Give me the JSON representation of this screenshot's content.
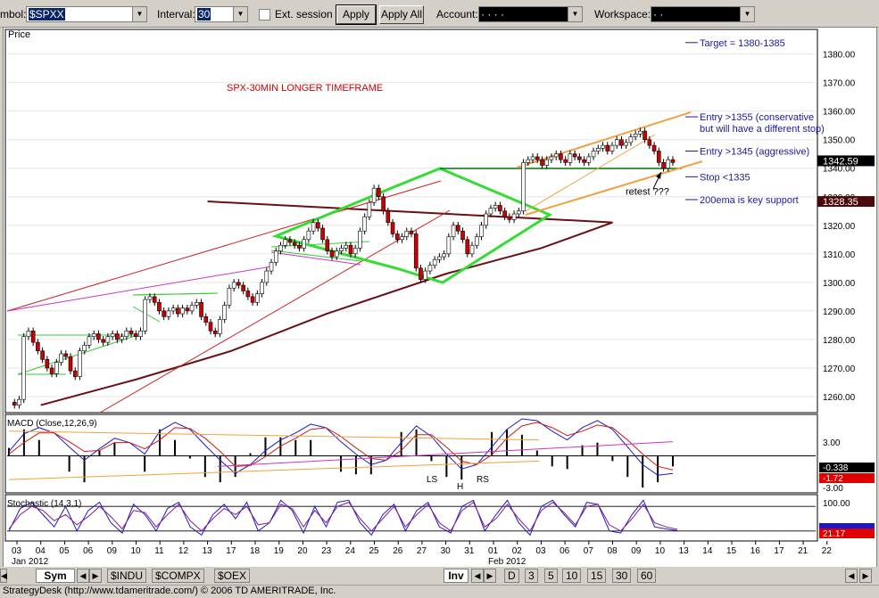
{
  "toolbar": {
    "symbol_label": "mbol:",
    "symbol_value": "$SPXX",
    "interval_label": "Interval:",
    "interval_value": "30",
    "ext_session_label": "Ext. session",
    "apply_label": "Apply",
    "apply_all_label": "Apply All",
    "account_label": "Account:",
    "account_value": "·  ·  ·  ·",
    "workspace_label": "Workspace:",
    "workspace_value": "·  ·"
  },
  "bottom": {
    "sym_tab": "Sym",
    "symbol_tabs": [
      "$INDU",
      "$COMPX",
      "$OEX"
    ],
    "inv_tab": "Inv",
    "interval_tabs": [
      "D",
      "3",
      "5",
      "10",
      "15",
      "30",
      "60"
    ]
  },
  "status_text": "StrategyDesk (http://www.tdameritrade.com/) © 2006 TD AMERITRADE, Inc.",
  "colors": {
    "candle_up": "#ffffff",
    "candle_down": "#cc0000",
    "ema": "#6b0f12",
    "pattern": "#33dd33",
    "channel": "#f0a040",
    "annotation": "#1a1a9c",
    "title": "#cc0000"
  },
  "chart_data": [
    {
      "type": "candlestick",
      "pane": "price",
      "pane_label": "Price",
      "title": "SPX-30MIN LONGER TIMEFRAME",
      "ylim": [
        1255,
        1388
      ],
      "y_ticks": [
        "1260.00",
        "1270.00",
        "1280.00",
        "1290.00",
        "1300.00",
        "1310.00",
        "1320.00",
        "1330.00",
        "1340.00",
        "1350.00",
        "1360.00",
        "1370.00",
        "1380.00"
      ],
      "price_labels": [
        {
          "value": 1342.59,
          "text": "1342.59"
        },
        {
          "value": 1328.35,
          "text": "1328.35"
        }
      ],
      "x_date_ticks": [
        "03",
        "04",
        "05",
        "06",
        "09",
        "10",
        "11",
        "12",
        "13",
        "17",
        "18",
        "19",
        "20",
        "23",
        "24",
        "25",
        "26",
        "27",
        "30",
        "31",
        "01",
        "02",
        "03",
        "06",
        "07",
        "08",
        "09",
        "10",
        "13",
        "14",
        "15",
        "16",
        "17",
        "21",
        "22"
      ],
      "x_month_labels": [
        {
          "at": "03",
          "text": "Jan 2012"
        },
        {
          "at": "01",
          "text": "Feb 2012"
        }
      ],
      "closes": [
        1258,
        1257,
        1259,
        1281,
        1283,
        1279,
        1276,
        1273,
        1270,
        1268,
        1272,
        1275,
        1274,
        1269,
        1267,
        1276,
        1278,
        1281,
        1282,
        1280,
        1279,
        1281,
        1282,
        1280,
        1281,
        1283,
        1282,
        1281,
        1283,
        1294,
        1295,
        1293,
        1290,
        1288,
        1290,
        1291,
        1289,
        1291,
        1290,
        1292,
        1293,
        1288,
        1286,
        1283,
        1282,
        1287,
        1292,
        1298,
        1300,
        1299,
        1297,
        1295,
        1293,
        1296,
        1300,
        1304,
        1307,
        1311,
        1313,
        1315,
        1314,
        1313,
        1312,
        1315,
        1318,
        1321,
        1319,
        1315,
        1311,
        1309,
        1311,
        1312,
        1313,
        1310,
        1312,
        1318,
        1323,
        1328,
        1333,
        1330,
        1325,
        1321,
        1317,
        1315,
        1316,
        1318,
        1317,
        1305,
        1301,
        1304,
        1306,
        1308,
        1309,
        1310,
        1316,
        1320,
        1318,
        1315,
        1310,
        1313,
        1316,
        1320,
        1324,
        1326,
        1327,
        1325,
        1323,
        1322,
        1324,
        1325,
        1342,
        1343,
        1344,
        1343,
        1341,
        1343,
        1344,
        1345,
        1343,
        1342,
        1345,
        1344,
        1343,
        1342,
        1344,
        1346,
        1347,
        1348,
        1346,
        1348,
        1350,
        1348,
        1349,
        1351,
        1352,
        1353,
        1350,
        1348,
        1346,
        1342,
        1340,
        1343,
        1342
      ],
      "ema_200": [
        {
          "x": "04",
          "y": 1257
        },
        {
          "x": "10",
          "y": 1266
        },
        {
          "x": "17",
          "y": 1276
        },
        {
          "x": "23",
          "y": 1289
        },
        {
          "x": "30",
          "y": 1303
        },
        {
          "x": "03",
          "y": 1312
        },
        {
          "x": "08",
          "y": 1321
        },
        {
          "x": "13",
          "y": 1328.35
        }
      ],
      "annotations": [
        {
          "text": "Target = 1380-1385",
          "price": 1384
        },
        {
          "text": "Entry >1355 (conservative",
          "price": 1358
        },
        {
          "text": "but will have a different stop)",
          "price": 1354
        },
        {
          "text": "Entry >1345 (aggressive)",
          "price": 1346
        },
        {
          "text": "Stop  <1335",
          "price": 1337
        },
        {
          "text": "retest ???",
          "price": 1332
        },
        {
          "text": "200ema is key support",
          "price": 1329
        }
      ]
    },
    {
      "type": "line",
      "pane": "macd",
      "pane_label": "MACD (Close,12,26,9)",
      "ylim": [
        -4,
        4.5
      ],
      "y_ticks": [
        "3.00",
        "-3.00"
      ],
      "readouts": [
        "-0.338",
        "-1.72"
      ],
      "pattern_labels": [
        "LS",
        "H",
        "RS"
      ],
      "series": [
        {
          "name": "MACD",
          "color": "#1a1acc",
          "values": [
            0.5,
            2.5,
            3.2,
            2.6,
            1.0,
            -0.5,
            0.8,
            2.0,
            1.5,
            0.2,
            2.8,
            3.8,
            3.0,
            1.2,
            -0.5,
            -2.0,
            -1.0,
            0.6,
            1.8,
            2.6,
            3.6,
            3.2,
            1.6,
            0.2,
            -1.0,
            -0.5,
            1.5,
            3.4,
            2.2,
            0.2,
            -1.5,
            -1.0,
            1.0,
            3.0,
            4.2,
            4.0,
            2.8,
            1.8,
            3.2,
            4.0,
            3.0,
            1.0,
            -1.0,
            -2.2,
            -2.0
          ]
        },
        {
          "name": "Signal",
          "color": "#cc1a1a",
          "values": [
            0.2,
            1.5,
            2.6,
            2.6,
            1.6,
            0.5,
            0.6,
            1.5,
            1.5,
            0.8,
            1.8,
            3.2,
            3.1,
            2.0,
            0.5,
            -1.2,
            -1.1,
            -0.1,
            1.1,
            2.0,
            3.0,
            3.2,
            2.2,
            0.9,
            -0.3,
            -0.5,
            0.6,
            2.4,
            2.4,
            1.0,
            -0.6,
            -1.0,
            0.1,
            2.0,
            3.4,
            3.8,
            3.2,
            2.3,
            2.8,
            3.5,
            3.2,
            1.8,
            0.2,
            -1.2,
            -1.6
          ]
        }
      ]
    },
    {
      "type": "line",
      "pane": "stochastic",
      "pane_label": "Stochastic (14,3,1)",
      "ylim": [
        0,
        100
      ],
      "y_ticks": [
        "100.00"
      ],
      "readouts": [
        "21.17"
      ],
      "series": [
        {
          "name": "%K",
          "color": "#1a1acc",
          "values": [
            20,
            75,
            90,
            60,
            30,
            80,
            20,
            70,
            90,
            40,
            15,
            85,
            60,
            20,
            75,
            90,
            30,
            10,
            60,
            85,
            50,
            90,
            20,
            40,
            95,
            70,
            15,
            80,
            30,
            90,
            95,
            40,
            10,
            60,
            85,
            20,
            70,
            90,
            30,
            15,
            80,
            95,
            20,
            60,
            95,
            40,
            10,
            80,
            95,
            60,
            30,
            90,
            85,
            20,
            15,
            60,
            95,
            30,
            25,
            21
          ]
        },
        {
          "name": "%D",
          "color": "#8a1a8a",
          "values": [
            25,
            60,
            80,
            70,
            45,
            60,
            35,
            55,
            80,
            55,
            25,
            70,
            65,
            30,
            60,
            85,
            45,
            20,
            50,
            75,
            60,
            80,
            35,
            40,
            85,
            75,
            30,
            70,
            40,
            80,
            90,
            50,
            20,
            50,
            80,
            30,
            60,
            85,
            40,
            20,
            70,
            90,
            30,
            50,
            85,
            50,
            20,
            70,
            90,
            65,
            35,
            80,
            85,
            35,
            20,
            50,
            85,
            40,
            30,
            24
          ]
        }
      ]
    }
  ]
}
